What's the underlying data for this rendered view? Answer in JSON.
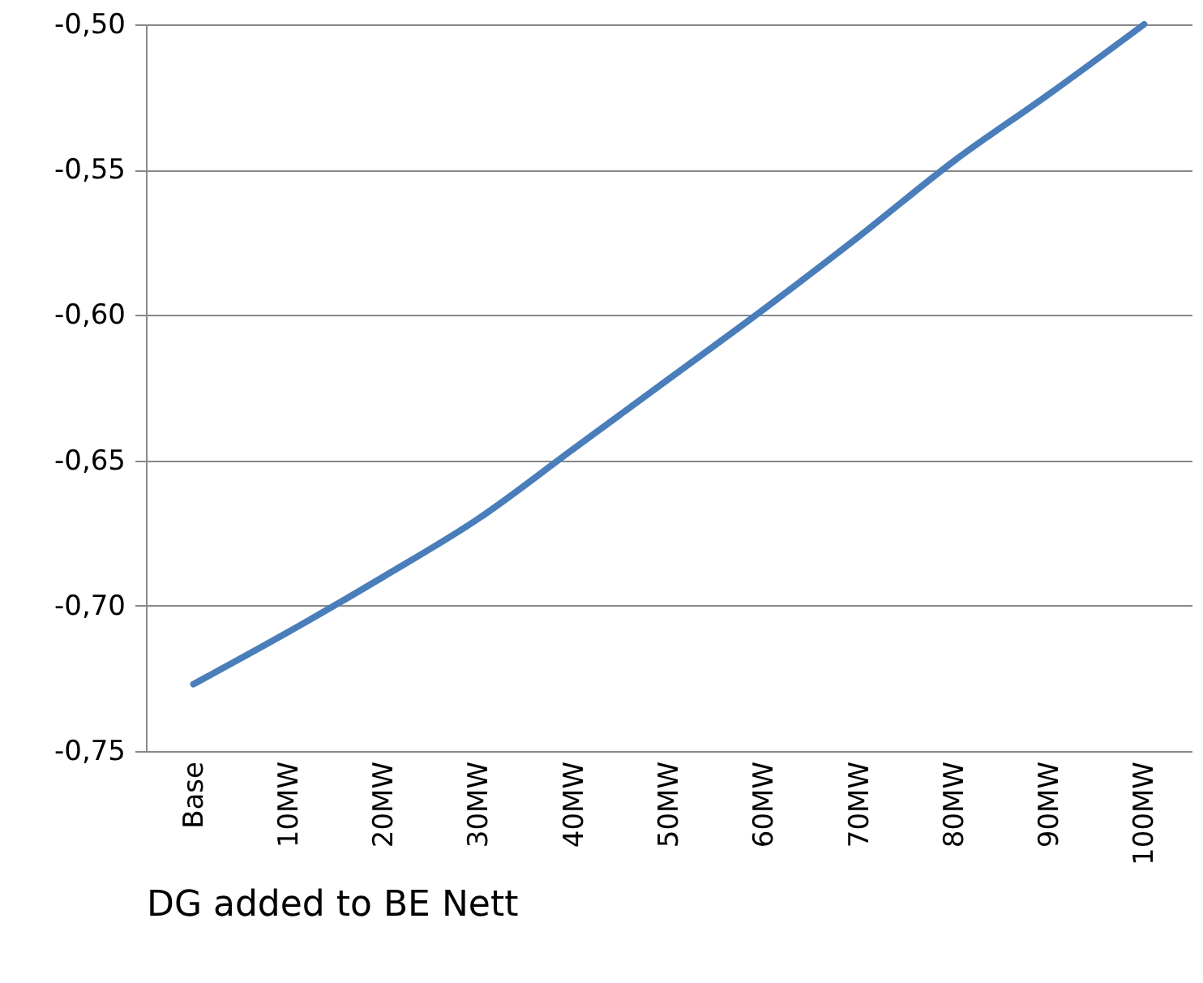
{
  "chart_data": {
    "type": "line",
    "xlabel": "DG added to BE Nett",
    "categories": [
      "Base",
      "10MW",
      "20MW",
      "30MW",
      "40MW",
      "50MW",
      "60MW",
      "70MW",
      "80MW",
      "90MW",
      "100MW"
    ],
    "series": [
      {
        "color": "#4a7ebb",
        "values": [
          -0.727,
          -0.709,
          -0.69,
          -0.67,
          -0.646,
          -0.622,
          -0.598,
          -0.573,
          -0.547,
          -0.524,
          -0.5
        ]
      }
    ],
    "ylim": [
      -0.75,
      -0.5
    ],
    "yticks": [
      {
        "value": -0.75,
        "label": "-0,75"
      },
      {
        "value": -0.7,
        "label": "-0,70"
      },
      {
        "value": -0.65,
        "label": "-0,65"
      },
      {
        "value": -0.6,
        "label": "-0,60"
      },
      {
        "value": -0.55,
        "label": "-0,55"
      },
      {
        "value": -0.5,
        "label": "-0,50"
      }
    ],
    "grid": "y",
    "marker": "none",
    "line_style": "solid"
  }
}
